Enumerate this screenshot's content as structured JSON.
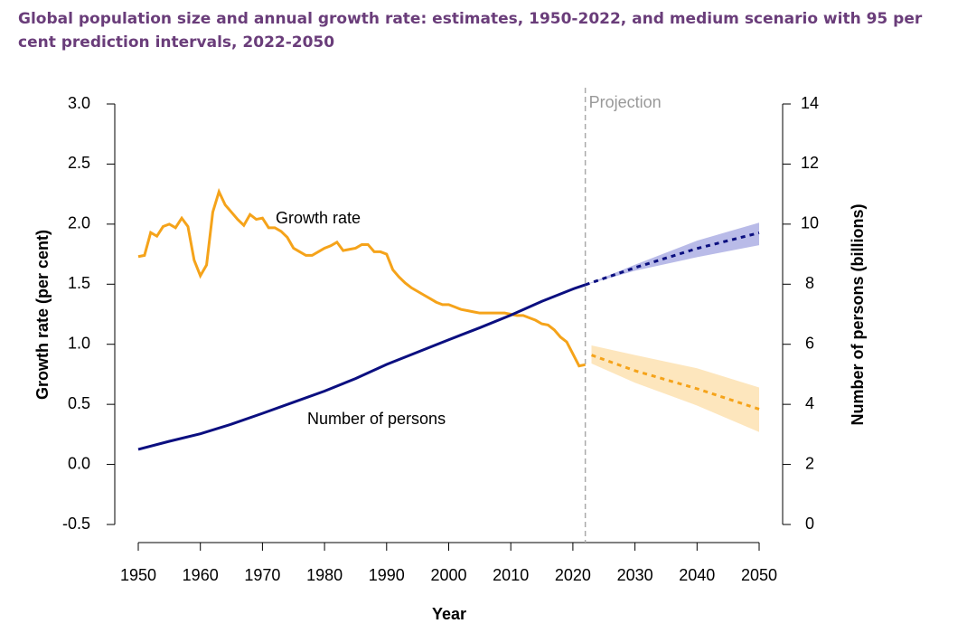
{
  "chart_data": {
    "type": "line",
    "title": "Global population size and annual growth rate: estimates, 1950-2022, and medium scenario with 95 per cent prediction intervals, 2022-2050",
    "x_label": "Year",
    "y_label": "Growth rate (per cent)",
    "y2_label": "Number of persons (billions)",
    "xlim": [
      1950,
      2050
    ],
    "xticks": [
      1950,
      1960,
      1970,
      1980,
      1990,
      2000,
      2010,
      2020,
      2030,
      2040,
      2050
    ],
    "ylim": [
      -0.5,
      3.0
    ],
    "yticks": [
      -0.5,
      {
        "value": 0,
        "label": "0.0"
      },
      0.5,
      {
        "value": 1,
        "label": "1.0"
      },
      1.5,
      {
        "value": 2,
        "label": "2.0"
      },
      2.5,
      {
        "value": 3,
        "label": "3.0"
      }
    ],
    "y2lim": [
      0,
      14
    ],
    "y2ticks": [
      0,
      2,
      4,
      6,
      8,
      10,
      12,
      14
    ],
    "projection_line": {
      "x": 2022,
      "label": "Projection"
    },
    "series": [
      {
        "name": "Growth rate",
        "color": "#f5a31a",
        "band_color": "#fde6bd",
        "x": [
          1950,
          1951,
          1952,
          1953,
          1954,
          1955,
          1956,
          1957,
          1958,
          1959,
          1960,
          1961,
          1962,
          1963,
          1964,
          1965,
          1966,
          1967,
          1968,
          1969,
          1970,
          1971,
          1972,
          1973,
          1974,
          1975,
          1976,
          1977,
          1978,
          1979,
          1980,
          1981,
          1982,
          1983,
          1984,
          1985,
          1986,
          1987,
          1988,
          1989,
          1990,
          1991,
          1992,
          1993,
          1994,
          1995,
          1996,
          1997,
          1998,
          1999,
          2000,
          2001,
          2002,
          2003,
          2004,
          2005,
          2006,
          2007,
          2008,
          2009,
          2010,
          2011,
          2012,
          2013,
          2014,
          2015,
          2016,
          2017,
          2018,
          2019,
          2020,
          2021,
          2022
        ],
        "values": [
          1.73,
          1.74,
          1.93,
          1.9,
          1.98,
          2.0,
          1.97,
          2.05,
          1.98,
          1.7,
          1.57,
          1.66,
          2.1,
          2.27,
          2.16,
          2.1,
          2.04,
          1.99,
          2.08,
          2.04,
          2.05,
          1.97,
          1.97,
          1.94,
          1.89,
          1.8,
          1.77,
          1.74,
          1.74,
          1.77,
          1.8,
          1.82,
          1.85,
          1.78,
          1.79,
          1.8,
          1.83,
          1.83,
          1.77,
          1.77,
          1.75,
          1.62,
          1.56,
          1.51,
          1.47,
          1.44,
          1.41,
          1.38,
          1.35,
          1.33,
          1.33,
          1.31,
          1.29,
          1.28,
          1.27,
          1.26,
          1.26,
          1.26,
          1.26,
          1.26,
          1.25,
          1.24,
          1.24,
          1.22,
          1.2,
          1.17,
          1.16,
          1.12,
          1.06,
          1.02,
          0.92,
          0.82,
          0.83
        ],
        "projection": {
          "x": [
            2023,
            2030,
            2040,
            2050
          ],
          "values": [
            0.91,
            0.78,
            0.63,
            0.46
          ],
          "lower": [
            0.84,
            0.68,
            0.49,
            0.27
          ],
          "upper": [
            0.99,
            0.91,
            0.8,
            0.64
          ]
        }
      },
      {
        "name": "Number of persons",
        "color": "#0b0f80",
        "band_color": "#b9bbe8",
        "axis": "y2",
        "x": [
          1950,
          1955,
          1960,
          1965,
          1970,
          1975,
          1980,
          1985,
          1990,
          1995,
          2000,
          2005,
          2010,
          2015,
          2020,
          2022
        ],
        "values": [
          2.5,
          2.77,
          3.02,
          3.34,
          3.7,
          4.07,
          4.44,
          4.86,
          5.33,
          5.74,
          6.15,
          6.55,
          6.97,
          7.43,
          7.84,
          7.98
        ],
        "projection": {
          "x": [
            2022,
            2030,
            2040,
            2050
          ],
          "values": [
            7.98,
            8.55,
            9.19,
            9.71
          ],
          "lower": [
            7.98,
            8.45,
            8.9,
            9.3
          ],
          "upper": [
            7.98,
            8.65,
            9.45,
            10.05
          ]
        }
      }
    ]
  }
}
